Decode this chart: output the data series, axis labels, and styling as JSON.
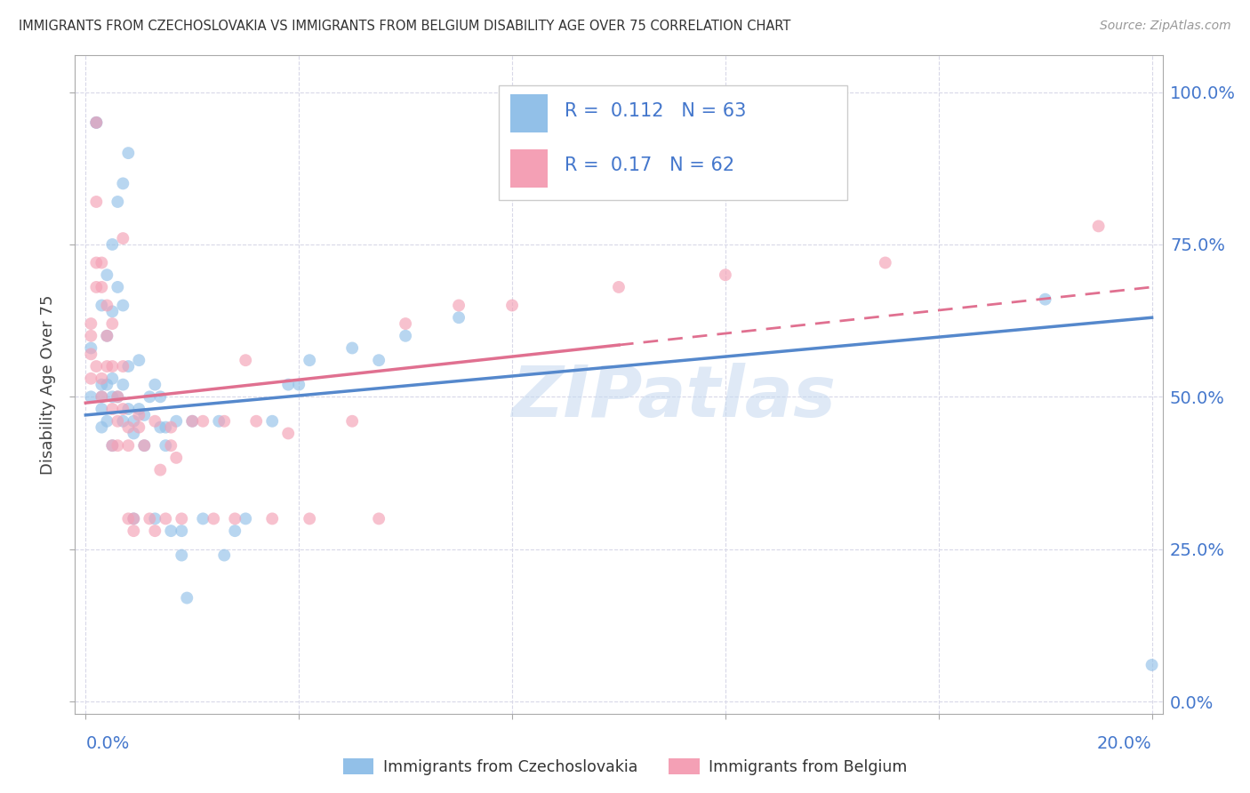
{
  "title": "IMMIGRANTS FROM CZECHOSLOVAKIA VS IMMIGRANTS FROM BELGIUM DISABILITY AGE OVER 75 CORRELATION CHART",
  "source": "Source: ZipAtlas.com",
  "ylabel": "Disability Age Over 75",
  "R_czech": 0.112,
  "N_czech": 63,
  "R_belgium": 0.17,
  "N_belgium": 62,
  "color_czech": "#92c0e8",
  "color_belgium": "#f4a0b5",
  "color_line_czech": "#5588cc",
  "color_line_belgium": "#e07090",
  "color_axis_blue": "#4477cc",
  "color_title": "#333333",
  "background": "#ffffff",
  "watermark": "ZIPatlas",
  "legend_border_color": "#cccccc",
  "xlim": [
    0.0,
    0.2
  ],
  "ylim": [
    0.0,
    1.0
  ],
  "ytick_vals": [
    0.0,
    0.25,
    0.5,
    0.75,
    1.0
  ],
  "ytick_labels_right": [
    "0.0%",
    "25.0%",
    "50.0%",
    "75.0%",
    "100.0%"
  ],
  "trend_y0_czech": 0.47,
  "trend_y1_czech": 0.63,
  "trend_y0_belg": 0.49,
  "trend_y1_belg": 0.68,
  "trend_solid_end_belg": 0.1,
  "scatter_marker_size": 100,
  "scatter_alpha": 0.65,
  "czech_x": [
    0.001,
    0.001,
    0.002,
    0.002,
    0.003,
    0.003,
    0.003,
    0.003,
    0.003,
    0.004,
    0.004,
    0.004,
    0.004,
    0.005,
    0.005,
    0.005,
    0.005,
    0.005,
    0.006,
    0.006,
    0.006,
    0.007,
    0.007,
    0.007,
    0.007,
    0.008,
    0.008,
    0.008,
    0.009,
    0.009,
    0.009,
    0.01,
    0.01,
    0.011,
    0.011,
    0.012,
    0.013,
    0.013,
    0.014,
    0.014,
    0.015,
    0.015,
    0.016,
    0.017,
    0.018,
    0.018,
    0.019,
    0.02,
    0.022,
    0.025,
    0.026,
    0.028,
    0.03,
    0.035,
    0.038,
    0.04,
    0.042,
    0.05,
    0.055,
    0.06,
    0.07,
    0.18,
    0.2
  ],
  "czech_y": [
    0.5,
    0.58,
    0.95,
    0.95,
    0.65,
    0.52,
    0.5,
    0.48,
    0.45,
    0.7,
    0.6,
    0.52,
    0.46,
    0.75,
    0.64,
    0.53,
    0.5,
    0.42,
    0.82,
    0.68,
    0.5,
    0.85,
    0.65,
    0.52,
    0.46,
    0.9,
    0.55,
    0.48,
    0.46,
    0.44,
    0.3,
    0.56,
    0.48,
    0.47,
    0.42,
    0.5,
    0.52,
    0.3,
    0.5,
    0.45,
    0.45,
    0.42,
    0.28,
    0.46,
    0.28,
    0.24,
    0.17,
    0.46,
    0.3,
    0.46,
    0.24,
    0.28,
    0.3,
    0.46,
    0.52,
    0.52,
    0.56,
    0.58,
    0.56,
    0.6,
    0.63,
    0.66,
    0.06
  ],
  "belgium_x": [
    0.001,
    0.001,
    0.001,
    0.001,
    0.002,
    0.002,
    0.002,
    0.002,
    0.002,
    0.003,
    0.003,
    0.003,
    0.003,
    0.004,
    0.004,
    0.004,
    0.005,
    0.005,
    0.005,
    0.005,
    0.006,
    0.006,
    0.006,
    0.007,
    0.007,
    0.007,
    0.008,
    0.008,
    0.008,
    0.009,
    0.009,
    0.01,
    0.01,
    0.011,
    0.012,
    0.013,
    0.013,
    0.014,
    0.015,
    0.016,
    0.016,
    0.017,
    0.018,
    0.02,
    0.022,
    0.024,
    0.026,
    0.028,
    0.03,
    0.032,
    0.035,
    0.038,
    0.042,
    0.05,
    0.055,
    0.06,
    0.07,
    0.08,
    0.1,
    0.12,
    0.15,
    0.19
  ],
  "belgium_y": [
    0.62,
    0.6,
    0.57,
    0.53,
    0.95,
    0.82,
    0.72,
    0.68,
    0.55,
    0.72,
    0.68,
    0.53,
    0.5,
    0.65,
    0.6,
    0.55,
    0.62,
    0.55,
    0.48,
    0.42,
    0.5,
    0.46,
    0.42,
    0.76,
    0.55,
    0.48,
    0.45,
    0.42,
    0.3,
    0.3,
    0.28,
    0.47,
    0.45,
    0.42,
    0.3,
    0.28,
    0.46,
    0.38,
    0.3,
    0.45,
    0.42,
    0.4,
    0.3,
    0.46,
    0.46,
    0.3,
    0.46,
    0.3,
    0.56,
    0.46,
    0.3,
    0.44,
    0.3,
    0.46,
    0.3,
    0.62,
    0.65,
    0.65,
    0.68,
    0.7,
    0.72,
    0.78
  ]
}
